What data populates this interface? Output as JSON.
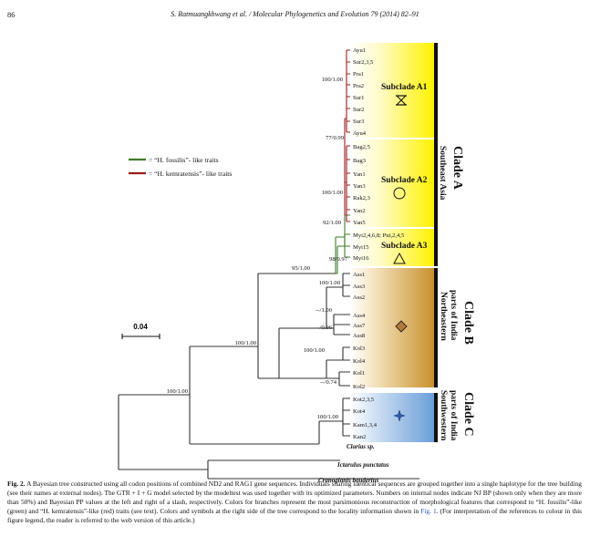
{
  "header": {
    "page_number": "86",
    "citation": "S. Ratmuangkhwang et al. / Molecular Phylogenetics and Evolution 79 (2014) 82–91"
  },
  "legend": {
    "green_label": "= “H. fossilis”- like traits",
    "red_label": "= “H. kemratensis”- like traits",
    "green_color": "#3f7d2b",
    "red_color": "#9b1c1c"
  },
  "scale_bar": {
    "label": "0.04"
  },
  "colors": {
    "clade_a": "#fff200",
    "clade_b": "#c8902c",
    "clade_c": "#6a9ed8",
    "branch": "#333333"
  },
  "tips": {
    "a1": [
      "Ayu1",
      "Sur2,3,5",
      "Pra1",
      "Pra2",
      "Sur1",
      "Sur2",
      "Sur3",
      "Ayu4"
    ],
    "a2": [
      "Bag2,5",
      "Bag3",
      "Yan1",
      "Yan3",
      "Rak2,3",
      "Yan2",
      "Yan5"
    ],
    "a3": [
      "Myi2,4,6,8; Put,2,4,5",
      "Myi15",
      "Myi16"
    ],
    "b": [
      "Ass1",
      "Ass3",
      "Ass2",
      "Ass4",
      "Ass7",
      "Ass8",
      "Kol3",
      "Kol4",
      "Kol1",
      "Kol2"
    ],
    "c": [
      "Kot2,3,5",
      "Kot4",
      "Kam1,3,4",
      "Kan2"
    ],
    "outgroups": [
      "Clarias sp.",
      "Ictarulus punctatus",
      "Cranoglanis bouderius"
    ]
  },
  "supports": {
    "a1": "100/1.00",
    "a_upper": "77/0.99",
    "a2": "100/1.00",
    "a23": "92/1.00",
    "a3": "98/0.97",
    "a_all": "95/1.00",
    "b1": "100/1.00",
    "b2": "--/1.00",
    "b3": "--/0.96",
    "b4": "100/1.00",
    "b5": "--/0.74",
    "bc": "100/1.00",
    "c": "100/1.00",
    "ingroup": "100/1.00"
  },
  "subclades": {
    "a1": "Subclade A1",
    "a2": "Subclade A2",
    "a3": "Subclade A3"
  },
  "clades": {
    "a": {
      "title": "Clade A",
      "region": [
        "Southeast Asia"
      ]
    },
    "b": {
      "title": "Clade B",
      "region": [
        "Northeastern",
        "parts of India"
      ]
    },
    "c": {
      "title": "Clade C",
      "region": [
        "Southwestern",
        "parts of India"
      ]
    }
  },
  "caption": {
    "label": "Fig. 2.",
    "text1": " A Bayesian tree constructed using all codon positions of combined ND2 and RAG1 gene sequences. Individuals sharing identical sequences are grouped together into a single haplotype for the tree building (see their names at external nodes). The GTR + I + G model selected by the modeltest was used together with its optimized parameters. Numbers on internal nodes indicate NJ BP (shown only when they are more than 50%) and Bayesian PP values at the left and right of a slash, respectively. Colors for branches represent the most parsimonious reconstruction of morphological features that correspond to “H. fossilis”-like (green) and “H. kemratensis”-like (red) traits (see text). Colors and symbols at the right side of the tree correspond to the locality information shown in ",
    "link": "Fig. 1",
    "text2": ". (For interpretation of the references to colour in this figure legend, the reader is referred to the web version of this article.)"
  }
}
